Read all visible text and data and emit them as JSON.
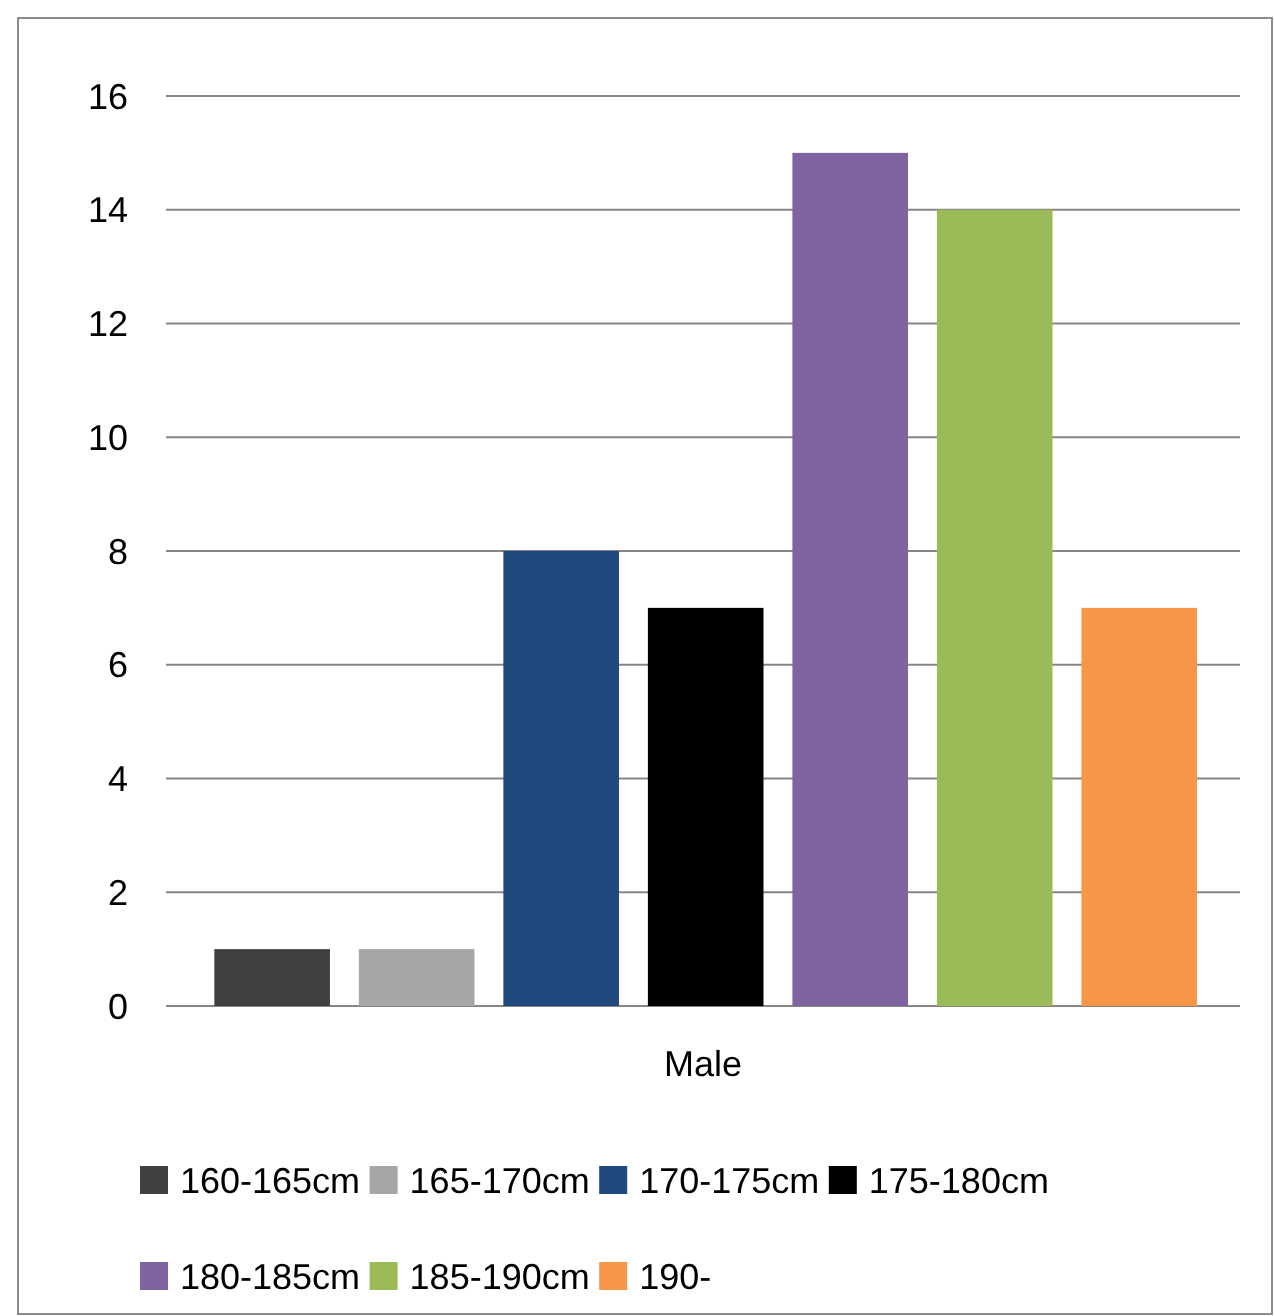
{
  "chart_data": {
    "type": "bar",
    "categories": [
      "Male"
    ],
    "series": [
      {
        "name": "160-165cm",
        "color": "#404040",
        "values": [
          1
        ]
      },
      {
        "name": "165-170cm",
        "color": "#a6a6a6",
        "values": [
          1
        ]
      },
      {
        "name": "170-175cm",
        "color": "#1f497d",
        "values": [
          8
        ]
      },
      {
        "name": "175-180cm",
        "color": "#000000",
        "values": [
          7
        ]
      },
      {
        "name": "180-185cm",
        "color": "#8064a2",
        "values": [
          15
        ]
      },
      {
        "name": "185-190cm",
        "color": "#9bbb59",
        "values": [
          14
        ]
      },
      {
        "name": "190-",
        "color": "#f79646",
        "values": [
          7
        ]
      }
    ],
    "ylim": [
      0,
      16
    ],
    "yticks": [
      0,
      2,
      4,
      6,
      8,
      10,
      12,
      14,
      16
    ],
    "grid": "y",
    "legend": "bottom"
  }
}
